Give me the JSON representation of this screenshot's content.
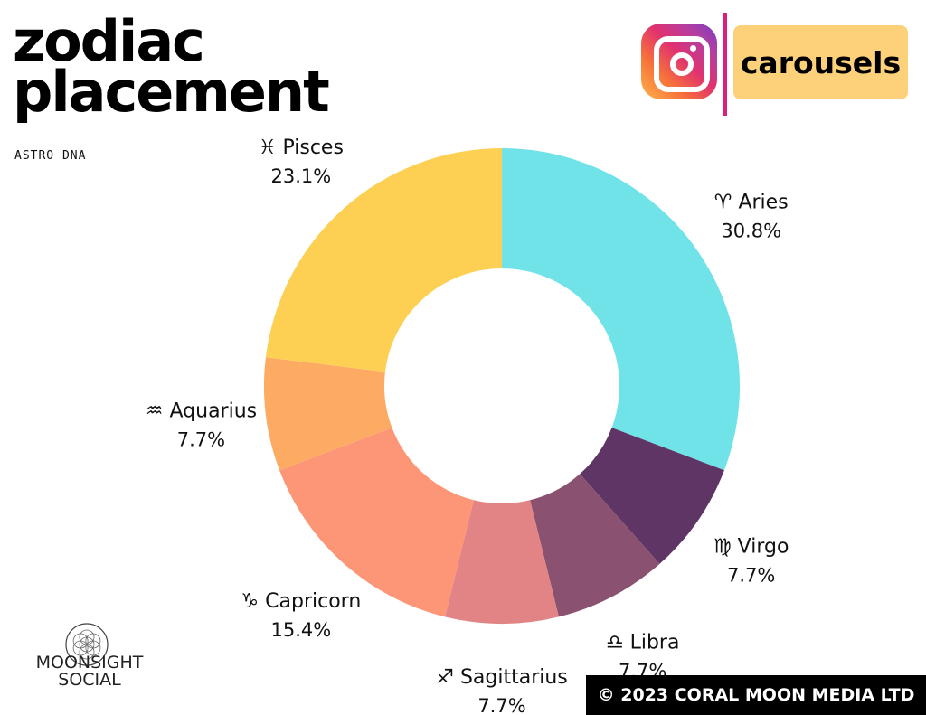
{
  "header": {
    "title_line1": "zodiac",
    "title_line2": "placement",
    "subtitle": "ASTRO DNA"
  },
  "badge": {
    "icon": "instagram-icon",
    "label": "carousels"
  },
  "brand": {
    "name_line1": "MOONSIGHT",
    "name_line2": "SOCIAL"
  },
  "footer": {
    "copyright": "© 2023 CORAL MOON MEDIA LTD"
  },
  "chart_data": {
    "type": "pie",
    "donut": true,
    "start": "top",
    "direction": "clockwise",
    "slices": [
      {
        "symbol": "♈",
        "label": "Aries",
        "value": 30.8,
        "display": "30.8%",
        "color": "#6fe3e8"
      },
      {
        "symbol": "♍",
        "label": "Virgo",
        "value": 7.7,
        "display": "7.7%",
        "color": "#5f3565"
      },
      {
        "symbol": "♎",
        "label": "Libra",
        "value": 7.7,
        "display": "7.7%",
        "color": "#8a5170"
      },
      {
        "symbol": "♐",
        "label": "Sagittarius",
        "value": 7.7,
        "display": "7.7%",
        "color": "#e28485"
      },
      {
        "symbol": "♑",
        "label": "Capricorn",
        "value": 15.4,
        "display": "15.4%",
        "color": "#fd9677"
      },
      {
        "symbol": "♒",
        "label": "Aquarius",
        "value": 7.7,
        "display": "7.7%",
        "color": "#fdab62"
      },
      {
        "symbol": "♓",
        "label": "Pisces",
        "value": 23.1,
        "display": "23.1%",
        "color": "#fdd054"
      }
    ]
  }
}
